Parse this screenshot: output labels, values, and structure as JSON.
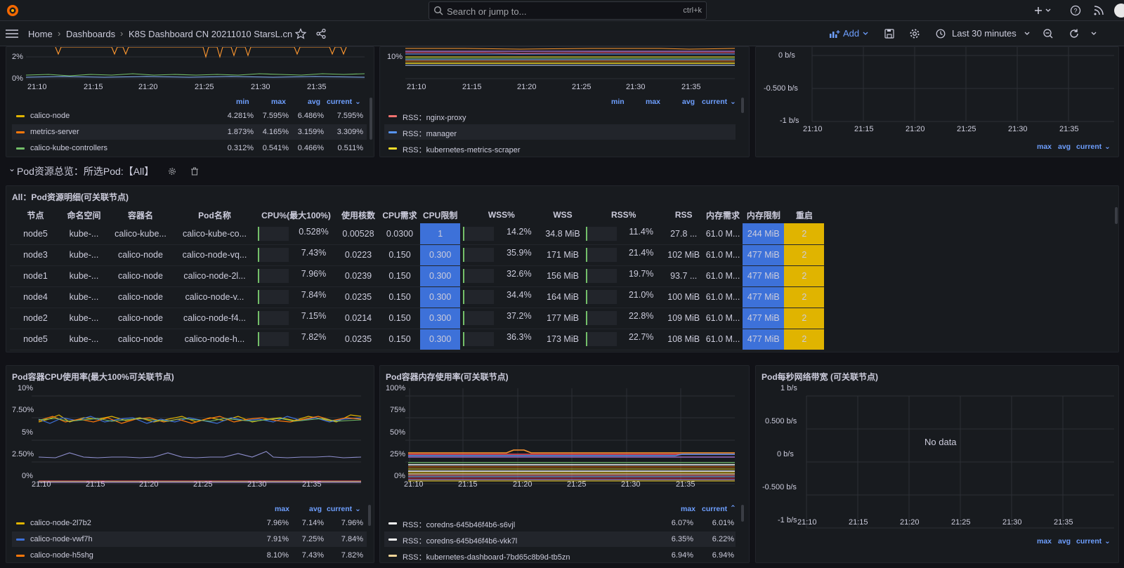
{
  "search": {
    "placeholder": "Search or jump to...",
    "shortcut": "ctrl+k"
  },
  "breadcrumb": {
    "home": "Home",
    "dashboards": "Dashboards",
    "current": "K8S Dashboard CN 20211010 StarsL.cn"
  },
  "toolbar": {
    "add": "Add",
    "time_range": "Last 30 minutes"
  },
  "top_left_panel": {
    "y_ticks": [
      "2%",
      "0%"
    ],
    "x_ticks": [
      "21:10",
      "21:15",
      "21:20",
      "21:25",
      "21:30",
      "21:35"
    ],
    "legend_headers": [
      "min",
      "max",
      "avg",
      "current"
    ],
    "legend": [
      {
        "name": "calico-node",
        "color": "#e0b400",
        "values": [
          "4.281%",
          "7.595%",
          "6.486%",
          "7.595%"
        ]
      },
      {
        "name": "metrics-server",
        "color": "#ff780a",
        "values": [
          "1.873%",
          "4.165%",
          "3.159%",
          "3.309%"
        ]
      },
      {
        "name": "calico-kube-controllers",
        "color": "#73bf69",
        "values": [
          "0.312%",
          "0.541%",
          "0.466%",
          "0.511%"
        ]
      }
    ]
  },
  "top_mid_panel": {
    "y_ticks": [
      "10%"
    ],
    "x_ticks": [
      "21:10",
      "21:15",
      "21:20",
      "21:25",
      "21:30",
      "21:35"
    ],
    "legend_headers": [
      "min",
      "max",
      "avg",
      "current"
    ],
    "legend": [
      {
        "name": "RSS：nginx-proxy",
        "color": "#f2726f"
      },
      {
        "name": "RSS：manager",
        "color": "#5794f2"
      },
      {
        "name": "RSS：kubernetes-metrics-scraper",
        "color": "#fade2a"
      }
    ]
  },
  "top_right_panel": {
    "y_ticks": [
      "0 b/s",
      "-0.500 b/s",
      "-1 b/s"
    ],
    "x_ticks": [
      "21:10",
      "21:15",
      "21:20",
      "21:25",
      "21:30",
      "21:35"
    ],
    "legend_headers": [
      "max",
      "avg",
      "current"
    ]
  },
  "row_header": {
    "title": "Pod资源总览：所选Pod:【All】"
  },
  "table_panel": {
    "title": "All：Pod资源明细(可关联节点)",
    "columns": [
      "节点",
      "命名空间",
      "容器名",
      "Pod名称",
      "CPU%(最大100%)",
      "使用核数",
      "CPU需求",
      "CPU限制",
      "WSS%",
      "WSS",
      "RSS%",
      "RSS",
      "内存需求",
      "内存限制",
      "重启"
    ],
    "rows": [
      [
        "node5",
        "kube-...",
        "calico-kube...",
        "calico-kube-co...",
        "0.528%",
        "0.00528",
        "0.0300",
        "1",
        "14.2%",
        "34.8 MiB",
        "11.4%",
        "27.8 ...",
        "61.0 M...",
        "244 MiB",
        "2"
      ],
      [
        "node3",
        "kube-...",
        "calico-node",
        "calico-node-vq...",
        "7.43%",
        "0.0223",
        "0.150",
        "0.300",
        "35.9%",
        "171 MiB",
        "21.4%",
        "102 MiB",
        "61.0 M...",
        "477 MiB",
        "2"
      ],
      [
        "node1",
        "kube-...",
        "calico-node",
        "calico-node-2l...",
        "7.96%",
        "0.0239",
        "0.150",
        "0.300",
        "32.6%",
        "156 MiB",
        "19.7%",
        "93.7 ...",
        "61.0 M...",
        "477 MiB",
        "2"
      ],
      [
        "node4",
        "kube-...",
        "calico-node",
        "calico-node-v...",
        "7.84%",
        "0.0235",
        "0.150",
        "0.300",
        "34.4%",
        "164 MiB",
        "21.0%",
        "100 MiB",
        "61.0 M...",
        "477 MiB",
        "2"
      ],
      [
        "node2",
        "kube-...",
        "calico-node",
        "calico-node-f4...",
        "7.15%",
        "0.0214",
        "0.150",
        "0.300",
        "37.2%",
        "177 MiB",
        "22.8%",
        "109 MiB",
        "61.0 M...",
        "477 MiB",
        "2"
      ],
      [
        "node5",
        "kube-...",
        "calico-node",
        "calico-node-h...",
        "7.82%",
        "0.0235",
        "0.150",
        "0.300",
        "36.3%",
        "173 MiB",
        "22.7%",
        "108 MiB",
        "61.0 M...",
        "477 MiB",
        "2"
      ]
    ]
  },
  "cpu_panel": {
    "title": "Pod容器CPU使用率(最大100%可关联节点)",
    "y_ticks": [
      "10%",
      "7.50%",
      "5%",
      "2.50%",
      "0%"
    ],
    "x_ticks": [
      "21:10",
      "21:15",
      "21:20",
      "21:25",
      "21:30",
      "21:35"
    ],
    "legend_headers": [
      "max",
      "avg",
      "current"
    ],
    "legend": [
      {
        "name": "calico-node-2l7b2",
        "color": "#e0b400",
        "values": [
          "7.96%",
          "7.14%",
          "7.96%"
        ]
      },
      {
        "name": "calico-node-vwf7h",
        "color": "#3d71d9",
        "values": [
          "7.91%",
          "7.25%",
          "7.84%"
        ]
      },
      {
        "name": "calico-node-h5shg",
        "color": "#ff780a",
        "values": [
          "8.10%",
          "7.43%",
          "7.82%"
        ]
      }
    ]
  },
  "mem_panel": {
    "title": "Pod容器内存使用率(可关联节点)",
    "y_ticks": [
      "100%",
      "75%",
      "50%",
      "25%",
      "0%"
    ],
    "x_ticks": [
      "21:10",
      "21:15",
      "21:20",
      "21:25",
      "21:30",
      "21:35"
    ],
    "legend_headers": [
      "max",
      "current"
    ],
    "legend": [
      {
        "name": "RSS：coredns-645b46f4b6-s6vjl",
        "color": "#ffffff",
        "values": [
          "6.07%",
          "6.01%"
        ]
      },
      {
        "name": "RSS：coredns-645b46f4b6-vkk7l",
        "color": "#ffffff",
        "values": [
          "6.35%",
          "6.22%"
        ]
      },
      {
        "name": "RSS：kubernetes-dashboard-7bd65c8b9d-tb5zn",
        "color": "#f4d598",
        "values": [
          "6.94%",
          "6.94%"
        ]
      }
    ]
  },
  "net_panel": {
    "title": "Pod每秒网络带宽 (可关联节点)",
    "y_ticks": [
      "1 b/s",
      "0.500 b/s",
      "0 b/s",
      "-0.500 b/s",
      "-1 b/s"
    ],
    "x_ticks": [
      "21:10",
      "21:15",
      "21:20",
      "21:25",
      "21:30",
      "21:35"
    ],
    "no_data": "No data",
    "legend_headers": [
      "max",
      "avg",
      "current"
    ]
  }
}
